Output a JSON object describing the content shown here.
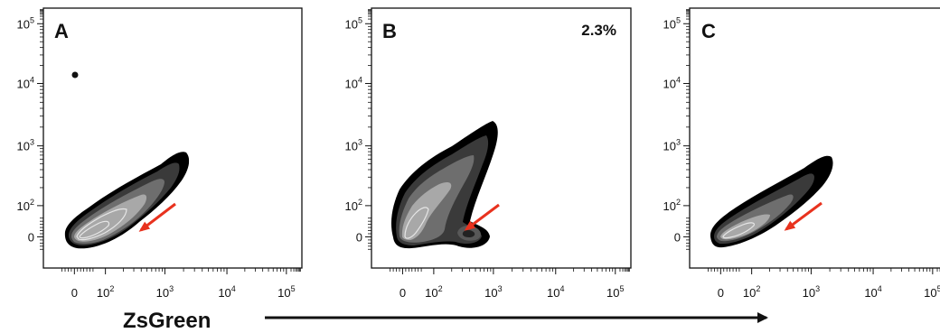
{
  "chart_data": [
    {
      "type": "contour",
      "panel_label": "A",
      "annotation": "",
      "x_scale": "biexponential",
      "y_scale": "biexponential",
      "x_tick_labels": [
        "0",
        "10^2",
        "10^3",
        "10^4",
        "10^5"
      ],
      "y_tick_labels": [
        "0",
        "10^2",
        "10^3",
        "10^4",
        "10^5"
      ],
      "population": {
        "shape": "elongated diagonal",
        "x_range": [
          0,
          2000
        ],
        "y_range": [
          0,
          1000
        ],
        "density_peak": [
          30,
          20
        ]
      },
      "outlier_point": [
        20,
        18000
      ],
      "arrow": {
        "color": "#e8321e",
        "points_to": [
          600,
          40
        ]
      }
    },
    {
      "type": "contour",
      "panel_label": "B",
      "annotation": "2.3%",
      "x_scale": "biexponential",
      "y_scale": "biexponential",
      "x_tick_labels": [
        "0",
        "10^2",
        "10^3",
        "10^4",
        "10^5"
      ],
      "y_tick_labels": [
        "0",
        "10^2",
        "10^3",
        "10^4",
        "10^5"
      ],
      "population": {
        "shape": "broad diagonal with sub-population",
        "x_range": [
          0,
          1200
        ],
        "y_range": [
          0,
          3000
        ],
        "density_peak": [
          30,
          30
        ],
        "sub_population_peak": [
          600,
          40
        ]
      },
      "arrow": {
        "color": "#e8321e",
        "points_to": [
          500,
          40
        ]
      }
    },
    {
      "type": "contour",
      "panel_label": "C",
      "annotation": "",
      "x_scale": "biexponential",
      "y_scale": "biexponential",
      "x_tick_labels": [
        "0",
        "10^2",
        "10^3",
        "10^4",
        "10^5"
      ],
      "y_tick_labels": [
        "0",
        "10^2",
        "10^3",
        "10^4",
        "10^5"
      ],
      "population": {
        "shape": "elongated diagonal",
        "x_range": [
          0,
          1300
        ],
        "y_range": [
          0,
          900
        ],
        "density_peak": [
          40,
          20
        ]
      },
      "arrow": {
        "color": "#e8321e",
        "points_to": [
          400,
          30
        ]
      }
    }
  ],
  "xaxis_title": "ZsGreen",
  "colors": {
    "arrow": "#e8321e",
    "contour_dark": "#000000",
    "contour_light": "#d8d8d8"
  }
}
